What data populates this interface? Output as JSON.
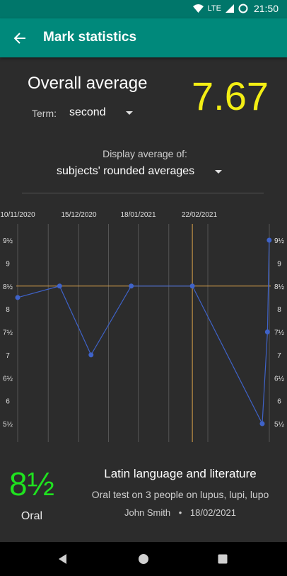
{
  "status_bar": {
    "network": "LTE",
    "time": "21:50"
  },
  "app_bar": {
    "title": "Mark statistics",
    "back_icon": "arrow-left-icon"
  },
  "overall": {
    "title": "Overall average",
    "value": "7.67",
    "value_color": "#f3ee14",
    "term_label": "Term:",
    "term_value": "second"
  },
  "display": {
    "label": "Display average of:",
    "value": "subjects' rounded averages"
  },
  "chart_data": {
    "type": "line",
    "x_ticks": [
      "10/11/2020",
      "15/12/2020",
      "18/01/2021",
      "22/02/2021"
    ],
    "y_ticks": [
      "9½",
      "9",
      "8½",
      "8",
      "7½",
      "7",
      "6½",
      "6",
      "5½"
    ],
    "y_tick_values": [
      9.5,
      9,
      8.5,
      8,
      7.5,
      7,
      6.5,
      6,
      5.5
    ],
    "ylim": [
      5.5,
      9.5
    ],
    "series_color": "#3f63c9",
    "x": [
      "10/11/2020",
      "04/12/2020",
      "22/12/2020",
      "14/01/2021",
      "18/02/2021",
      "30/03/2021",
      "02/04/2021",
      "03/04/2021"
    ],
    "values": [
      8.25,
      8.5,
      7,
      8.5,
      8.5,
      5.5,
      7.5,
      9.5
    ],
    "selected_index": 4,
    "grid": true
  },
  "selected_mark": {
    "value": "8½",
    "value_color": "#1fe21f",
    "type": "Oral",
    "subject": "Latin language and literature",
    "description": "Oral test on 3 people on lupus, lupi, lupo",
    "teacher": "John Smith",
    "separator": "•",
    "date": "18/02/2021"
  },
  "nav_bar": {
    "back_icon": "triangle-back-icon",
    "home_icon": "circle-home-icon",
    "recents_icon": "square-recents-icon"
  }
}
